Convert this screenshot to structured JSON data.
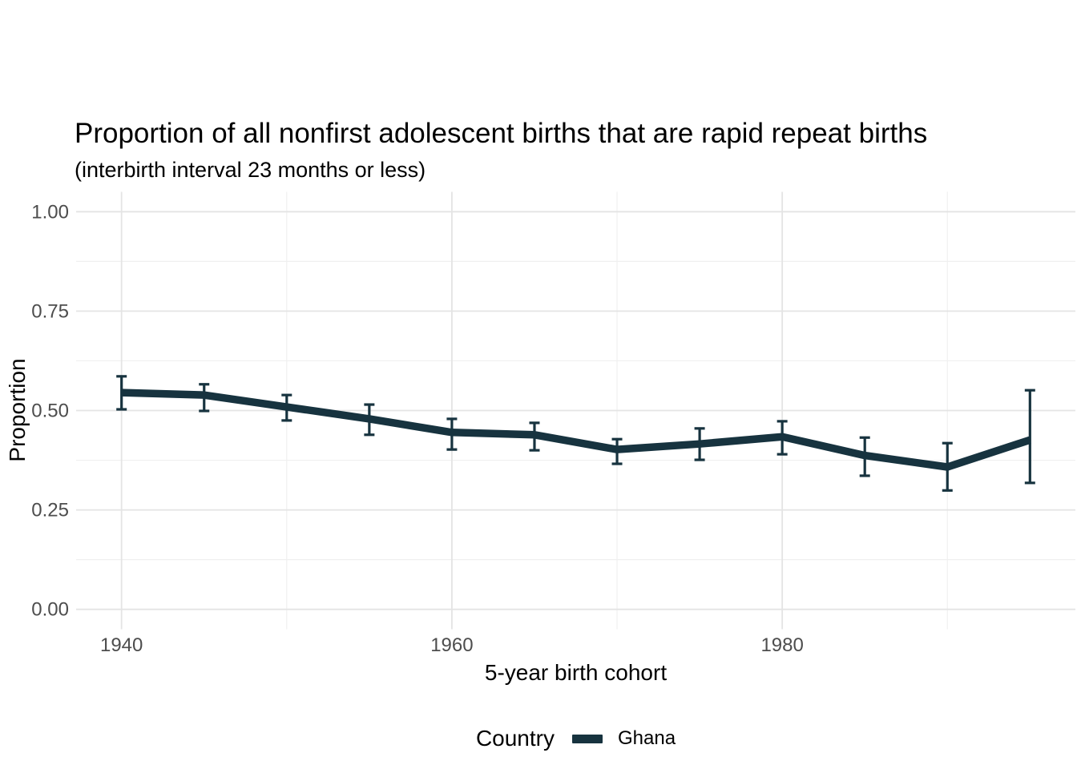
{
  "title": "Proportion of all nonfirst adolescent births that are rapid repeat births",
  "subtitle": "(interbirth interval 23 months or less)",
  "legend": {
    "title": "Country",
    "entries": [
      {
        "label": "Ghana",
        "color": "#17333F"
      }
    ]
  },
  "colors": {
    "series": "#17333F",
    "tick_text": "#4d4d4d",
    "grid_major": "#e4e4e4",
    "grid_minor": "#f0f0f0",
    "background": "#ffffff"
  },
  "chart_data": {
    "type": "line",
    "title": "Proportion of all nonfirst adolescent births that are rapid repeat births",
    "subtitle": "(interbirth interval 23 months or less)",
    "xlabel": "5-year birth cohort",
    "ylabel": "Proportion",
    "x": [
      1940,
      1945,
      1950,
      1955,
      1960,
      1965,
      1970,
      1975,
      1980,
      1985,
      1990,
      1995
    ],
    "series": [
      {
        "name": "Ghana",
        "color": "#17333F",
        "values": [
          0.545,
          0.539,
          0.509,
          0.479,
          0.445,
          0.439,
          0.402,
          0.416,
          0.434,
          0.387,
          0.358,
          0.426
        ],
        "ci_lower": [
          0.503,
          0.499,
          0.475,
          0.439,
          0.402,
          0.4,
          0.366,
          0.376,
          0.39,
          0.336,
          0.299,
          0.318
        ],
        "ci_upper": [
          0.586,
          0.566,
          0.539,
          0.515,
          0.479,
          0.469,
          0.428,
          0.455,
          0.473,
          0.432,
          0.418,
          0.551
        ]
      }
    ],
    "error_bars": true,
    "xlim": [
      1937.25,
      1997.75
    ],
    "ylim": [
      -0.05,
      1.05
    ],
    "x_ticks": {
      "major": [
        1940,
        1960,
        1980
      ],
      "minor": [
        1950,
        1970,
        1990
      ]
    },
    "y_ticks": {
      "major": [
        0,
        0.25,
        0.5,
        0.75,
        1
      ],
      "minor": [
        0.125,
        0.375,
        0.625,
        0.875
      ]
    },
    "x_tick_labels": [
      "1940",
      "1960",
      "1980"
    ],
    "y_tick_labels": [
      "0.00",
      "0.25",
      "0.50",
      "0.75",
      "1.00"
    ],
    "grid": true,
    "legend_position": "bottom"
  }
}
